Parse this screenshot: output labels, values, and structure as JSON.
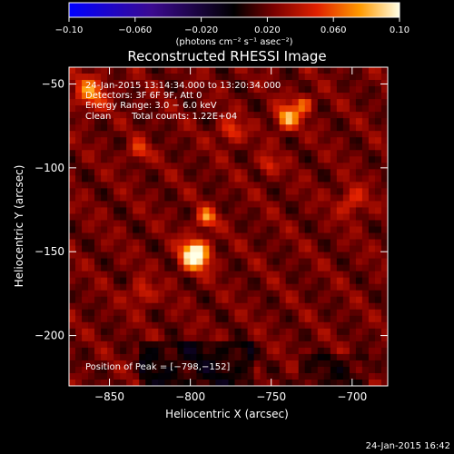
{
  "chart_data": {
    "type": "heatmap",
    "title": "Reconstructed RHESSI Image",
    "xlabel": "Heliocentric X (arcsec)",
    "ylabel": "Heliocentric Y (arcsec)",
    "xlim": [
      -875,
      -678
    ],
    "ylim": [
      -230,
      -40
    ],
    "x_ticks": [
      -850,
      -800,
      -750,
      -700
    ],
    "y_ticks": [
      -50,
      -100,
      -150,
      -200
    ],
    "x_tick_labels": [
      "−850",
      "−800",
      "−750",
      "−700"
    ],
    "y_tick_labels": [
      "−50",
      "−100",
      "−150",
      "−200"
    ],
    "colorbar": {
      "range": [
        -0.1,
        0.1
      ],
      "tick_values": [
        -0.1,
        -0.06,
        -0.02,
        0.02,
        0.06,
        0.1
      ],
      "tick_labels": [
        "−0.10",
        "−0.060",
        "−0.020",
        "0.020",
        "0.060",
        "0.10"
      ],
      "units": "(photons cm⁻² s⁻¹ asec⁻²)"
    },
    "colors": {
      "negative_end": "#0000ff",
      "zero": "#000000",
      "mid_red": "#c81400",
      "orange": "#ff8c00",
      "positive_end": "#ffffe6"
    },
    "annotations": {
      "time": "24-Jan-2015 13:14:34.000 to 13:20:34.000",
      "detectors": "Detectors: 3F 6F 9F, Att 0",
      "energy": "Energy Range: 3.0 − 6.0 keV",
      "method": "Clean",
      "counts": "Total counts: 1.22E+04",
      "peak": "Position of Peak = [−798,−152]"
    },
    "peak_position": [
      -798,
      -152
    ],
    "sources": [
      {
        "x": -797,
        "y": -152,
        "amp": 0.095,
        "sigma": 6
      },
      {
        "x": -790,
        "y": -130,
        "amp": 0.05,
        "sigma": 4
      },
      {
        "x": -740,
        "y": -70,
        "amp": 0.06,
        "sigma": 5
      },
      {
        "x": -730,
        "y": -62,
        "amp": 0.04,
        "sigma": 4
      },
      {
        "x": -862,
        "y": -55,
        "amp": 0.045,
        "sigma": 7
      },
      {
        "x": -775,
        "y": -78,
        "amp": 0.035,
        "sigma": 5
      },
      {
        "x": -832,
        "y": -90,
        "amp": 0.035,
        "sigma": 4
      },
      {
        "x": -752,
        "y": -98,
        "amp": 0.03,
        "sigma": 4
      },
      {
        "x": -830,
        "y": -175,
        "amp": 0.03,
        "sigma": 5
      },
      {
        "x": -700,
        "y": -120,
        "amp": 0.03,
        "sigma": 6
      }
    ]
  },
  "footer": {
    "timestamp": "24-Jan-2015 16:42"
  }
}
